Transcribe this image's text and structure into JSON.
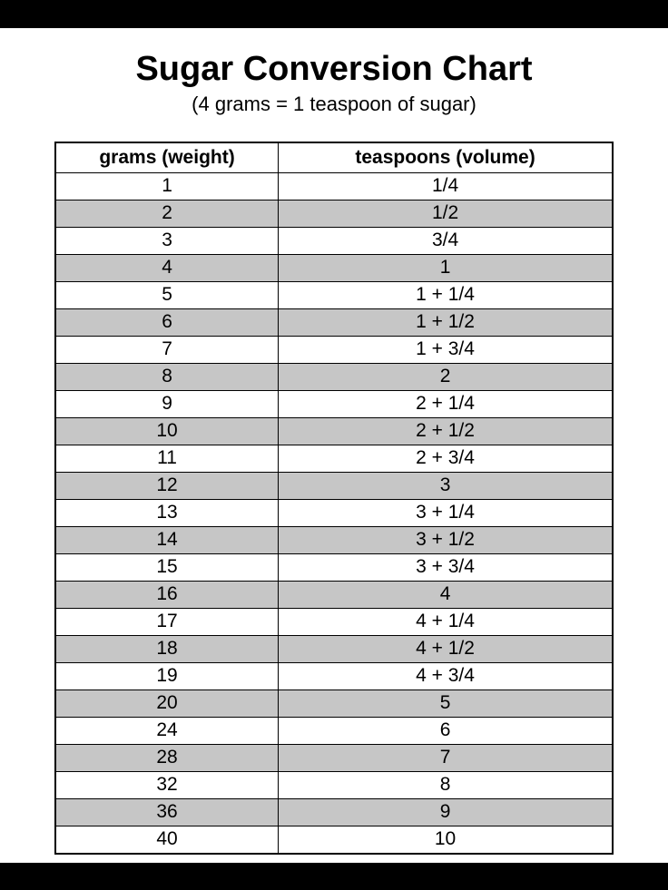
{
  "title": "Sugar Conversion Chart",
  "subtitle": "(4 grams = 1 teaspoon of sugar)",
  "table": {
    "type": "table",
    "columns": [
      "grams (weight)",
      "teaspoons (volume)"
    ],
    "column_widths": [
      "40%",
      "60%"
    ],
    "header_fontsize": 21,
    "header_fontweight": "bold",
    "cell_fontsize": 21,
    "border_color": "#000000",
    "outer_border_width": 2,
    "inner_border_width": 1,
    "shaded_bg": "#c6c6c6",
    "unshaded_bg": "#ffffff",
    "rows": [
      {
        "grams": "1",
        "tsp": "1/4",
        "shaded": false
      },
      {
        "grams": "2",
        "tsp": "1/2",
        "shaded": true
      },
      {
        "grams": "3",
        "tsp": "3/4",
        "shaded": false
      },
      {
        "grams": "4",
        "tsp": "1",
        "shaded": true
      },
      {
        "grams": "5",
        "tsp": "1 + 1/4",
        "shaded": false
      },
      {
        "grams": "6",
        "tsp": "1 + 1/2",
        "shaded": true
      },
      {
        "grams": "7",
        "tsp": "1 + 3/4",
        "shaded": false
      },
      {
        "grams": "8",
        "tsp": "2",
        "shaded": true
      },
      {
        "grams": "9",
        "tsp": "2 + 1/4",
        "shaded": false
      },
      {
        "grams": "10",
        "tsp": "2 + 1/2",
        "shaded": true
      },
      {
        "grams": "11",
        "tsp": "2 + 3/4",
        "shaded": false
      },
      {
        "grams": "12",
        "tsp": "3",
        "shaded": true
      },
      {
        "grams": "13",
        "tsp": "3 + 1/4",
        "shaded": false
      },
      {
        "grams": "14",
        "tsp": "3 + 1/2",
        "shaded": true
      },
      {
        "grams": "15",
        "tsp": "3 + 3/4",
        "shaded": false
      },
      {
        "grams": "16",
        "tsp": "4",
        "shaded": true
      },
      {
        "grams": "17",
        "tsp": "4 + 1/4",
        "shaded": false
      },
      {
        "grams": "18",
        "tsp": "4 + 1/2",
        "shaded": true
      },
      {
        "grams": "19",
        "tsp": "4 + 3/4",
        "shaded": false
      },
      {
        "grams": "20",
        "tsp": "5",
        "shaded": true
      },
      {
        "grams": "24",
        "tsp": "6",
        "shaded": false
      },
      {
        "grams": "28",
        "tsp": "7",
        "shaded": true
      },
      {
        "grams": "32",
        "tsp": "8",
        "shaded": false
      },
      {
        "grams": "36",
        "tsp": "9",
        "shaded": true
      },
      {
        "grams": "40",
        "tsp": "10",
        "shaded": false
      }
    ]
  },
  "styling": {
    "page_bg": "#000000",
    "document_bg": "#ffffff",
    "title_fontsize": 38,
    "title_fontweight": "bold",
    "subtitle_fontsize": 22,
    "text_color": "#000000",
    "font_family": "Arial, Helvetica, sans-serif"
  }
}
